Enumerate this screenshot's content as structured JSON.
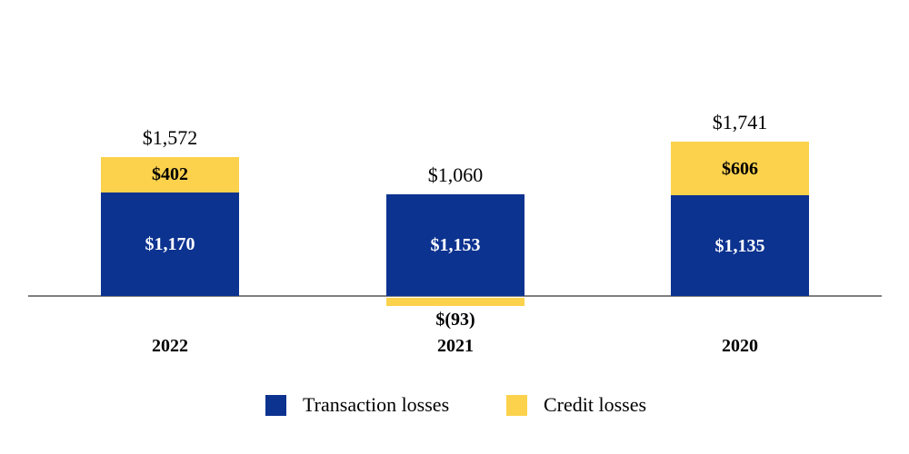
{
  "chart_data": {
    "type": "bar",
    "stacked": true,
    "title": "",
    "categories": [
      "2022",
      "2021",
      "2020"
    ],
    "series": [
      {
        "name": "Transaction losses",
        "color": "#0d3390",
        "values": [
          1170,
          1153,
          1135
        ]
      },
      {
        "name": "Credit losses",
        "color": "#fcd24d",
        "values": [
          402,
          -93,
          606
        ]
      }
    ],
    "totals": [
      1572,
      1060,
      1741
    ],
    "groups": [
      {
        "year": "2022",
        "total_label": "$1,572",
        "transaction_value": 1170,
        "transaction_label": "$1,170",
        "credit_value": 402,
        "credit_label": "$402"
      },
      {
        "year": "2021",
        "total_label": "$1,060",
        "transaction_value": 1153,
        "transaction_label": "$1,153",
        "credit_value": -93,
        "credit_label": "$(93)"
      },
      {
        "year": "2020",
        "total_label": "$1,741",
        "transaction_value": 1135,
        "transaction_label": "$1,135",
        "credit_value": 606,
        "credit_label": "$606"
      }
    ],
    "legend": [
      {
        "label": "Transaction losses",
        "color": "#0d3390"
      },
      {
        "label": "Credit losses",
        "color": "#fcd24d"
      }
    ],
    "legend_position": "bottom",
    "axis": {
      "baseline_visible": true,
      "baseline_color": "#7f7f7f",
      "tick_labels_visible": false
    }
  }
}
